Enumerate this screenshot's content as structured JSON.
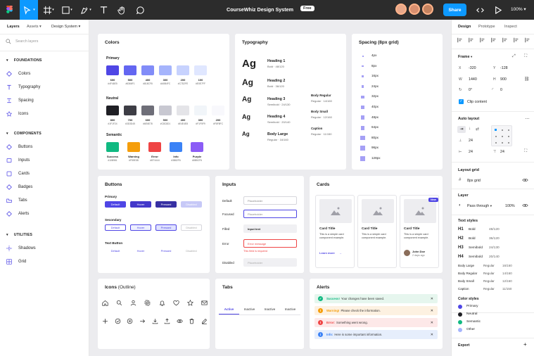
{
  "topbar": {
    "title": "CourseWhiz Design System",
    "badge": "Free",
    "share": "Share",
    "zoom": "100%",
    "avatars": [
      "#e9a88a",
      "#d98f6f",
      "#c4825f"
    ]
  },
  "left": {
    "tabs": [
      "Layers",
      "Assets",
      "Design System"
    ],
    "search_placeholder": "Search layers",
    "foundations_label": "FOUNDATIONS",
    "foundations": [
      "Colors",
      "Typography",
      "Spacing",
      "Icons"
    ],
    "components_label": "COMPONENTS",
    "components": [
      "Buttons",
      "Inputs",
      "Cards",
      "Badges",
      "Tabs",
      "Alerts"
    ],
    "utilities_label": "UTILITIES",
    "utilities": [
      "Shadows",
      "Grid"
    ]
  },
  "colors": {
    "title": "Colors",
    "primary_label": "Primary",
    "primary": [
      {
        "n": "600",
        "h": "#4F46E5",
        "c": "#4F46E5"
      },
      {
        "n": "500",
        "h": "#6366F1",
        "c": "#6366F1"
      },
      {
        "n": "400",
        "h": "#818CF8",
        "c": "#818CF8"
      },
      {
        "n": "300",
        "h": "#A5B4FC",
        "c": "#A5B4FC"
      },
      {
        "n": "200",
        "h": "#C7D2FE",
        "c": "#C7D2FE"
      },
      {
        "n": "100",
        "h": "#E0E7FF",
        "c": "#E0E7FF"
      }
    ],
    "neutral_label": "Neutral",
    "neutral": [
      {
        "n": "800",
        "h": "#1F1F24",
        "c": "#1F1F24"
      },
      {
        "n": "700",
        "h": "#3D3D45",
        "c": "#3D3D45"
      },
      {
        "n": "600",
        "h": "#6E6E78",
        "c": "#6E6E78"
      },
      {
        "n": "500",
        "h": "#C8C8D1",
        "c": "#C8C8D1"
      },
      {
        "n": "400",
        "h": "#E4E4E8",
        "c": "#E4E4E8"
      },
      {
        "n": "300",
        "h": "#F1F5F9",
        "c": "#F1F5F9"
      },
      {
        "n": "200",
        "h": "#F8F8FC",
        "c": "#F8F8FC"
      }
    ],
    "semantic_label": "Semantic",
    "semantic": [
      {
        "n": "Success",
        "h": "#10B981",
        "c": "#10B981"
      },
      {
        "n": "Warning",
        "h": "#F59E0B",
        "c": "#F59E0B"
      },
      {
        "n": "Error",
        "h": "#EF4444",
        "c": "#EF4444"
      },
      {
        "n": "Info",
        "h": "#3B82F6",
        "c": "#3B82F6"
      },
      {
        "n": "Purple",
        "h": "#8B5CF6",
        "c": "#8B5CF6"
      }
    ]
  },
  "typography": {
    "title": "Typography",
    "headings": [
      {
        "sample": "Ag",
        "name": "Heading 1",
        "meta": "Bold · 48/120"
      },
      {
        "sample": "Ag",
        "name": "Heading 2",
        "meta": "Bold · 36/120"
      },
      {
        "sample": "Ag",
        "name": "Heading 3",
        "meta": "Semibold · 24/130"
      },
      {
        "sample": "Ag",
        "name": "Heading 4",
        "meta": "Semibold · 20/140"
      },
      {
        "sample": "Ag",
        "name": "Body Large",
        "meta": "Regular · 16/160"
      }
    ],
    "body": [
      {
        "name": "Body Regular",
        "meta": "Regular · 14/160"
      },
      {
        "name": "Body Small",
        "meta": "Regular · 12/160"
      },
      {
        "name": "Caption",
        "meta": "Regular · 11/150"
      }
    ]
  },
  "spacing": {
    "title": "Spacing (8px grid)",
    "items": [
      {
        "label": "4px",
        "size": 4
      },
      {
        "label": "8px",
        "size": 8
      },
      {
        "label": "16px",
        "size": 16
      },
      {
        "label": "24px",
        "size": 24
      },
      {
        "label": "32px",
        "size": 32
      },
      {
        "label": "40px",
        "size": 40
      },
      {
        "label": "48px",
        "size": 48
      },
      {
        "label": "64px",
        "size": 64
      },
      {
        "label": "80px",
        "size": 80
      },
      {
        "label": "96px",
        "size": 96
      },
      {
        "label": "128px",
        "size": 128
      }
    ]
  },
  "buttons": {
    "title": "Buttons",
    "primary_label": "Primary",
    "secondary_label": "Secondary",
    "text_label": "Text Button",
    "states": [
      "Default",
      "Hover",
      "Pressed",
      "Disabled"
    ]
  },
  "inputs": {
    "title": "Inputs",
    "rows": [
      {
        "label": "Default",
        "value": "Placeholder"
      },
      {
        "label": "Focused",
        "value": "Placeholder"
      },
      {
        "label": "Filled",
        "value": "Input text"
      },
      {
        "label": "Error",
        "value": "Error message",
        "help": "This field is required"
      },
      {
        "label": "Disabled",
        "value": "Placeholder"
      }
    ]
  },
  "cards": {
    "title": "Cards",
    "items": [
      {
        "title": "Card Title",
        "text": "This is a simple card component example.",
        "link": "Learn more"
      },
      {
        "title": "Card Title",
        "text": "This is a simple card component example."
      },
      {
        "title": "Card Title",
        "text": "This is a simple card component example.",
        "badge": "New",
        "author": "John Doe",
        "time": "2 days ago"
      }
    ]
  },
  "icons": {
    "title": "Icons",
    "subtitle": "(Outline)",
    "row1": [
      "home-icon",
      "search-icon",
      "user-icon",
      "settings-icon",
      "bell-icon",
      "heart-icon",
      "star-icon",
      "mail-icon"
    ],
    "row2": [
      "plus-icon",
      "check-circle-icon",
      "close-circle-icon",
      "arrow-right-icon",
      "download-icon",
      "upload-icon",
      "eye-icon",
      "trash-icon",
      "edit-icon"
    ]
  },
  "tabs": {
    "title": "Tabs",
    "items": [
      "Active",
      "Inactive",
      "Inactive",
      "Inactive"
    ]
  },
  "alerts": {
    "title": "Alerts",
    "items": [
      {
        "kind": "Success!",
        "text": "Your changes have been saved.",
        "bg": "#e6f6ee",
        "fg": "#10B981"
      },
      {
        "kind": "Warning!",
        "text": "Please check the information.",
        "bg": "#fdf1e1",
        "fg": "#F59E0B"
      },
      {
        "kind": "Error:",
        "text": "Something went wrong.",
        "bg": "#fde8e8",
        "fg": "#EF4444"
      },
      {
        "kind": "Info:",
        "text": "Here is some important information.",
        "bg": "#e6eefc",
        "fg": "#3B82F6"
      }
    ]
  },
  "right": {
    "tabs": [
      "Design",
      "Prototype",
      "Inspect"
    ],
    "frame_label": "Frame",
    "x_label": "X",
    "x": "-320",
    "y_label": "Y",
    "y": "-128",
    "w_label": "W",
    "w": "1440",
    "h_label": "H",
    "h": "900",
    "rot": "0°",
    "radius": "0",
    "clip": "Clip content",
    "autolayout_label": "Auto layout",
    "gap1": "24",
    "gap2": "24",
    "gap3": "24",
    "layoutgrid_label": "Layout grid",
    "grid": "8px grid",
    "layer_label": "Layer",
    "blend": "Pass through",
    "opacity": "100%",
    "textstyles_label": "Text styles",
    "textstyles": [
      {
        "tag": "H1",
        "w": "Bold",
        "s": "48/120"
      },
      {
        "tag": "H2",
        "w": "Bold",
        "s": "36/120"
      },
      {
        "tag": "H3",
        "w": "Semibold",
        "s": "24/130"
      },
      {
        "tag": "H4",
        "w": "Semibold",
        "s": "20/140"
      }
    ],
    "bodystyles": [
      {
        "tag": "Body Large",
        "w": "Regular",
        "s": "16/160"
      },
      {
        "tag": "Body Regular",
        "w": "Regular",
        "s": "14/160"
      },
      {
        "tag": "Body Small",
        "w": "Regular",
        "s": "12/160"
      },
      {
        "tag": "Caption",
        "w": "Regular",
        "s": "11/150"
      }
    ],
    "colorstyles_label": "Color styles",
    "colorstyles": [
      {
        "name": "Primary",
        "c": "#4F46E5"
      },
      {
        "name": "Neutral",
        "c": "#1F1F24"
      },
      {
        "name": "Semantic",
        "c": "#10B981"
      },
      {
        "name": "Other",
        "c": "#A5B4FC"
      }
    ],
    "export_label": "Export"
  }
}
